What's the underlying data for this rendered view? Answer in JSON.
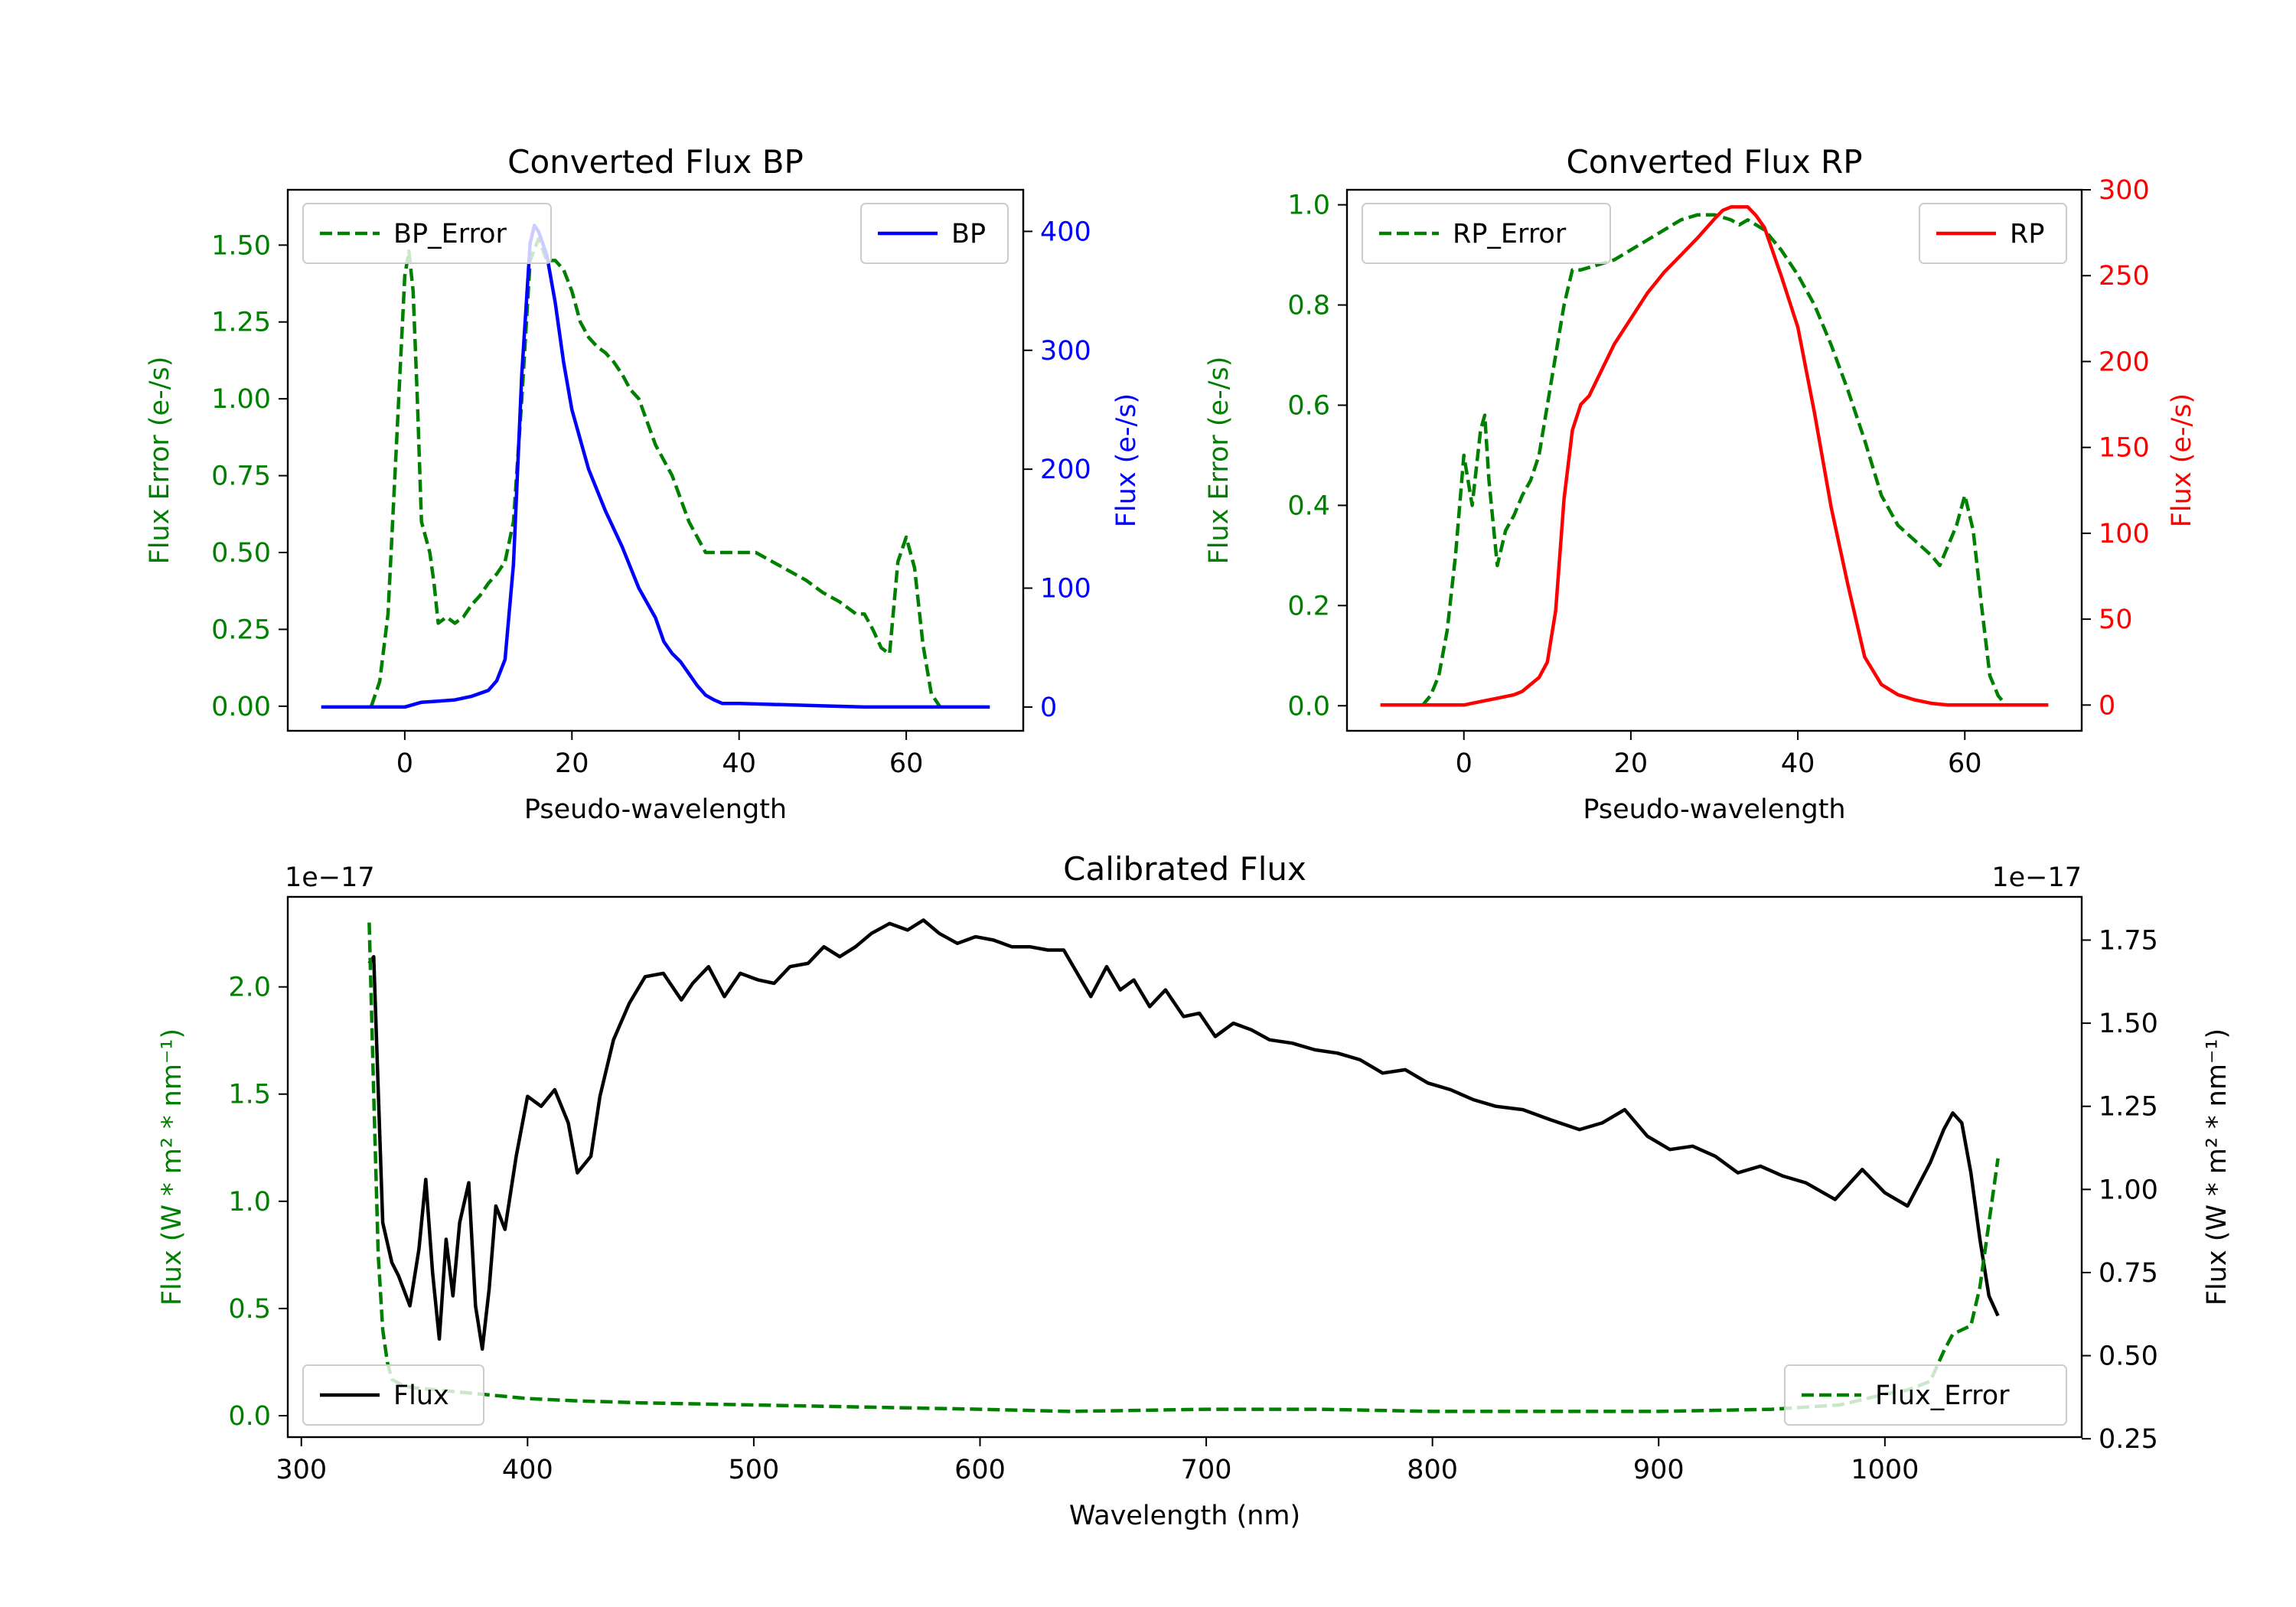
{
  "colors": {
    "green": "#008000",
    "blue": "#0000ff",
    "red": "#ff0000",
    "black": "#000000",
    "axis": "#000000"
  },
  "chart_data": [
    {
      "id": "bp",
      "type": "line",
      "title": "Converted Flux BP",
      "xlabel": "Pseudo-wavelength",
      "ylabel_left": "Flux Error (e-/s)",
      "ylabel_right": "Flux (e-/s)",
      "xlim": [
        -14,
        74
      ],
      "ylim_left": [
        -0.08,
        1.68
      ],
      "ylim_right": [
        -20,
        435
      ],
      "xticks": [
        0,
        20,
        40,
        60
      ],
      "xtick_labels": [
        "0",
        "20",
        "40",
        "60"
      ],
      "yticks_left": [
        0.0,
        0.25,
        0.5,
        0.75,
        1.0,
        1.25,
        1.5
      ],
      "ytick_labels_left": [
        "0.00",
        "0.25",
        "0.50",
        "0.75",
        "1.00",
        "1.25",
        "1.50"
      ],
      "yticks_right": [
        0,
        100,
        200,
        300,
        400
      ],
      "ytick_labels_right": [
        "0",
        "100",
        "200",
        "300",
        "400"
      ],
      "series": [
        {
          "name": "BP_Error",
          "axis": "left",
          "color": "#008000",
          "dash": true,
          "x": [
            -4,
            -3,
            -2,
            -1,
            0,
            0.5,
            1,
            1.5,
            2,
            3,
            3.5,
            4,
            4.5,
            5,
            6,
            7,
            8,
            9,
            10,
            11,
            12,
            13,
            14,
            15,
            16,
            17,
            18,
            19,
            20,
            21,
            22,
            23,
            24,
            25,
            26,
            27,
            28,
            30,
            32,
            34,
            36,
            38,
            40,
            42,
            44,
            46,
            48,
            50,
            52,
            54,
            55,
            56,
            57,
            58,
            59,
            60,
            61,
            62,
            63,
            64
          ],
          "y": [
            0,
            0.08,
            0.3,
            0.85,
            1.4,
            1.48,
            1.35,
            1.0,
            0.6,
            0.5,
            0.4,
            0.27,
            0.28,
            0.29,
            0.27,
            0.29,
            0.33,
            0.36,
            0.4,
            0.43,
            0.47,
            0.6,
            1.0,
            1.45,
            1.52,
            1.45,
            1.45,
            1.42,
            1.35,
            1.25,
            1.2,
            1.17,
            1.15,
            1.12,
            1.08,
            1.03,
            1.0,
            0.85,
            0.75,
            0.6,
            0.5,
            0.5,
            0.5,
            0.5,
            0.47,
            0.44,
            0.41,
            0.37,
            0.34,
            0.3,
            0.3,
            0.25,
            0.19,
            0.17,
            0.47,
            0.55,
            0.45,
            0.2,
            0.04,
            0
          ]
        },
        {
          "name": "BP",
          "axis": "right",
          "color": "#0000ff",
          "dash": false,
          "x": [
            -10,
            -6,
            -2,
            0,
            2,
            4,
            6,
            8,
            10,
            11,
            12,
            13,
            14,
            15,
            15.5,
            16,
            17,
            18,
            19,
            20,
            22,
            24,
            26,
            28,
            30,
            31,
            32,
            33,
            34,
            35,
            36,
            37,
            38,
            40,
            45,
            50,
            55,
            60,
            65,
            70
          ],
          "y": [
            0,
            0,
            0,
            0,
            4,
            5,
            6,
            9,
            14,
            22,
            40,
            120,
            280,
            390,
            405,
            400,
            380,
            340,
            290,
            250,
            200,
            165,
            135,
            100,
            75,
            55,
            45,
            38,
            28,
            18,
            10,
            6,
            3,
            3,
            2,
            1,
            0,
            0,
            0,
            0
          ]
        }
      ],
      "legend_left": [
        "BP_Error"
      ],
      "legend_right": [
        "BP"
      ]
    },
    {
      "id": "rp",
      "type": "line",
      "title": "Converted Flux RP",
      "xlabel": "Pseudo-wavelength",
      "ylabel_left": "Flux Error (e-/s)",
      "ylabel_right": "Flux (e-/s)",
      "xlim": [
        -14,
        74
      ],
      "ylim_left": [
        -0.05,
        1.03
      ],
      "ylim_right": [
        -15,
        300
      ],
      "xticks": [
        0,
        20,
        40,
        60
      ],
      "xtick_labels": [
        "0",
        "20",
        "40",
        "60"
      ],
      "yticks_left": [
        0.0,
        0.2,
        0.4,
        0.6,
        0.8,
        1.0
      ],
      "ytick_labels_left": [
        "0.0",
        "0.2",
        "0.4",
        "0.6",
        "0.8",
        "1.0"
      ],
      "yticks_right": [
        0,
        50,
        100,
        150,
        200,
        250,
        300
      ],
      "ytick_labels_right": [
        "0",
        "50",
        "100",
        "150",
        "200",
        "250",
        "300"
      ],
      "series": [
        {
          "name": "RP_Error",
          "axis": "left",
          "color": "#008000",
          "dash": true,
          "x": [
            -5,
            -4,
            -3,
            -2,
            -1,
            0,
            1,
            2,
            2.5,
            3,
            4,
            5,
            6,
            7,
            8,
            9,
            10,
            11,
            12,
            13,
            14,
            16,
            18,
            20,
            22,
            24,
            26,
            28,
            30,
            32,
            33,
            34,
            36,
            38,
            40,
            42,
            44,
            46,
            48,
            50,
            52,
            54,
            56,
            57,
            58,
            59,
            60,
            61,
            62,
            63,
            64,
            65
          ],
          "y": [
            0,
            0.02,
            0.06,
            0.15,
            0.3,
            0.5,
            0.4,
            0.55,
            0.58,
            0.45,
            0.28,
            0.35,
            0.38,
            0.42,
            0.45,
            0.5,
            0.6,
            0.7,
            0.8,
            0.87,
            0.87,
            0.88,
            0.89,
            0.91,
            0.93,
            0.95,
            0.97,
            0.98,
            0.98,
            0.97,
            0.96,
            0.97,
            0.95,
            0.91,
            0.86,
            0.8,
            0.72,
            0.63,
            0.53,
            0.42,
            0.36,
            0.33,
            0.3,
            0.28,
            0.32,
            0.36,
            0.42,
            0.35,
            0.2,
            0.06,
            0.02,
            0
          ]
        },
        {
          "name": "RP",
          "axis": "right",
          "color": "#ff0000",
          "dash": false,
          "x": [
            -10,
            -5,
            0,
            2,
            4,
            6,
            7,
            8,
            9,
            10,
            11,
            12,
            13,
            14,
            15,
            16,
            18,
            20,
            22,
            24,
            26,
            28,
            30,
            31,
            32,
            33,
            34,
            35,
            36,
            38,
            40,
            42,
            44,
            46,
            48,
            50,
            52,
            54,
            56,
            58,
            60,
            65,
            70
          ],
          "y": [
            0,
            0,
            0,
            2,
            4,
            6,
            8,
            12,
            16,
            25,
            55,
            120,
            160,
            175,
            180,
            190,
            210,
            225,
            240,
            252,
            262,
            272,
            283,
            288,
            290,
            290,
            290,
            285,
            278,
            250,
            220,
            170,
            115,
            70,
            28,
            12,
            6,
            3,
            1,
            0,
            0,
            0,
            0
          ]
        }
      ],
      "legend_left": [
        "RP_Error"
      ],
      "legend_right": [
        "RP"
      ]
    },
    {
      "id": "cal",
      "type": "line",
      "title": "Calibrated Flux",
      "xlabel": "Wavelength (nm)",
      "ylabel_left": "Flux (W * m² * nm⁻¹)",
      "ylabel_right": "Flux (W * m² * nm⁻¹)",
      "offset_left": "1e−17",
      "offset_right": "1e−17",
      "xlim": [
        294,
        1087
      ],
      "ylim_left": [
        -0.1,
        2.42
      ],
      "ylim_right": [
        0.255,
        1.88
      ],
      "xticks": [
        300,
        400,
        500,
        600,
        700,
        800,
        900,
        1000
      ],
      "xtick_labels": [
        "300",
        "400",
        "500",
        "600",
        "700",
        "800",
        "900",
        "1000"
      ],
      "yticks_left": [
        0.0,
        0.5,
        1.0,
        1.5,
        2.0
      ],
      "ytick_labels_left": [
        "0.0",
        "0.5",
        "1.0",
        "1.5",
        "2.0"
      ],
      "yticks_right": [
        0.25,
        0.5,
        0.75,
        1.0,
        1.25,
        1.5,
        1.75
      ],
      "ytick_labels_right": [
        "0.25",
        "0.50",
        "0.75",
        "1.00",
        "1.25",
        "1.50",
        "1.75"
      ],
      "series": [
        {
          "name": "Flux",
          "axis": "right",
          "color": "#000000",
          "dash": false,
          "x": [
            330,
            332,
            336,
            340,
            343,
            348,
            352,
            355,
            358,
            361,
            364,
            367,
            370,
            374,
            377,
            380,
            383,
            386,
            390,
            395,
            400,
            406,
            412,
            418,
            422,
            428,
            432,
            438,
            445,
            452,
            460,
            468,
            473,
            480,
            487,
            494,
            502,
            509,
            516,
            524,
            531,
            538,
            545,
            552,
            560,
            568,
            575,
            582,
            590,
            598,
            606,
            614,
            622,
            630,
            637,
            643,
            649,
            656,
            662,
            668,
            675,
            682,
            690,
            697,
            704,
            712,
            720,
            728,
            738,
            748,
            758,
            768,
            778,
            788,
            798,
            808,
            818,
            828,
            840,
            852,
            865,
            875,
            885,
            895,
            905,
            915,
            925,
            935,
            945,
            955,
            965,
            978,
            990,
            1000,
            1010,
            1020,
            1026,
            1030,
            1034,
            1038,
            1042,
            1046,
            1050
          ],
          "y": [
            1.68,
            1.7,
            0.9,
            0.78,
            0.74,
            0.65,
            0.82,
            1.03,
            0.75,
            0.55,
            0.85,
            0.68,
            0.9,
            1.02,
            0.65,
            0.52,
            0.7,
            0.95,
            0.88,
            1.1,
            1.28,
            1.25,
            1.3,
            1.2,
            1.05,
            1.1,
            1.28,
            1.45,
            1.56,
            1.64,
            1.65,
            1.57,
            1.62,
            1.67,
            1.58,
            1.65,
            1.63,
            1.62,
            1.67,
            1.68,
            1.73,
            1.7,
            1.73,
            1.77,
            1.8,
            1.78,
            1.81,
            1.77,
            1.74,
            1.76,
            1.75,
            1.73,
            1.73,
            1.72,
            1.72,
            1.65,
            1.58,
            1.67,
            1.6,
            1.63,
            1.55,
            1.6,
            1.52,
            1.53,
            1.46,
            1.5,
            1.48,
            1.45,
            1.44,
            1.42,
            1.41,
            1.39,
            1.35,
            1.36,
            1.32,
            1.3,
            1.27,
            1.25,
            1.24,
            1.21,
            1.18,
            1.2,
            1.24,
            1.16,
            1.12,
            1.13,
            1.1,
            1.05,
            1.07,
            1.04,
            1.02,
            0.97,
            1.06,
            0.99,
            0.95,
            1.08,
            1.18,
            1.23,
            1.2,
            1.05,
            0.85,
            0.68,
            0.62
          ]
        },
        {
          "name": "Flux_Error",
          "axis": "left",
          "color": "#008000",
          "dash": true,
          "x": [
            330,
            332,
            334,
            336,
            338,
            340,
            345,
            350,
            360,
            370,
            380,
            390,
            400,
            420,
            450,
            500,
            550,
            600,
            640,
            700,
            750,
            800,
            850,
            900,
            950,
            980,
            1000,
            1010,
            1020,
            1026,
            1030,
            1034,
            1038,
            1042,
            1046,
            1050
          ],
          "y": [
            2.3,
            1.5,
            0.75,
            0.4,
            0.25,
            0.17,
            0.14,
            0.13,
            0.12,
            0.11,
            0.1,
            0.09,
            0.08,
            0.07,
            0.06,
            0.05,
            0.04,
            0.03,
            0.02,
            0.03,
            0.03,
            0.02,
            0.02,
            0.02,
            0.03,
            0.05,
            0.1,
            0.12,
            0.16,
            0.3,
            0.38,
            0.4,
            0.42,
            0.6,
            0.9,
            1.2
          ]
        }
      ],
      "legend_left": [
        "Flux"
      ],
      "legend_right": [
        "Flux_Error"
      ]
    }
  ]
}
